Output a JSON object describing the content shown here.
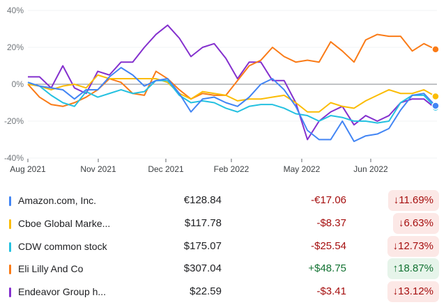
{
  "chart_data": {
    "type": "line",
    "ylabel": "",
    "ylim": [
      -40,
      40
    ],
    "yticks": [
      "40%",
      "20%",
      "0%",
      "-20%",
      "-40%"
    ],
    "ytick_values": [
      40,
      20,
      0,
      -20,
      -40
    ],
    "xticks": [
      "Aug 2021",
      "Nov 2021",
      "Dec 2021",
      "Feb 2022",
      "May 2022",
      "Jun 2022"
    ],
    "grid": true,
    "baseline": 0,
    "series": [
      {
        "name": "Endeavor Group h...",
        "color": "#8430ce",
        "values": [
          4,
          4,
          -2,
          10,
          -2,
          -5,
          7,
          5,
          12,
          12,
          20,
          27,
          32,
          25,
          15,
          20,
          22,
          14,
          3,
          12,
          12,
          2,
          2,
          -10,
          -30,
          -20,
          -15,
          -12,
          -22,
          -17,
          -20,
          -17,
          -10,
          -8,
          -8,
          -13.1
        ]
      },
      {
        "name": "Eli Lilly And Co",
        "color": "#fa7b17",
        "values": [
          0,
          -7,
          -11,
          -12,
          -10,
          -7,
          -3,
          3,
          1,
          -5,
          -6,
          7,
          3,
          -3,
          -8,
          -5,
          -6,
          -6,
          2,
          10,
          13,
          20,
          15,
          12,
          13,
          12,
          23,
          18,
          12,
          24,
          27,
          26,
          26,
          18,
          22,
          18.9
        ]
      },
      {
        "name": "Cboe Global Marke...",
        "color": "#fbbc04",
        "values": [
          0,
          -1,
          -3,
          -1,
          0,
          -2,
          5,
          3,
          3,
          3,
          3,
          3,
          1,
          -5,
          -8,
          -4,
          -5,
          -6,
          -9,
          -8,
          -8,
          -7,
          -6,
          -10,
          -15,
          -15,
          -10,
          -12,
          -13,
          -9,
          -6,
          -3,
          -5,
          -5,
          -3,
          -6.6
        ]
      },
      {
        "name": "CDW common stock",
        "color": "#24c1e0",
        "values": [
          1,
          -1,
          -6,
          -10,
          -12,
          -4,
          -7,
          -5,
          -3,
          -5,
          -4,
          2,
          2,
          -6,
          -10,
          -9,
          -10,
          -13,
          -15,
          -12,
          -11,
          -11,
          -13,
          -16,
          -17,
          -20,
          -17,
          -18,
          -20,
          -20,
          -21,
          -20,
          -10,
          -6,
          -6,
          -12.7
        ]
      },
      {
        "name": "Amazon.com, Inc.",
        "color": "#4285f4",
        "values": [
          1,
          -1,
          -2,
          -3,
          -8,
          -3,
          -3,
          4,
          9,
          5,
          -1,
          2,
          3,
          -5,
          -15,
          -8,
          -7,
          -10,
          -12,
          -7,
          0,
          3,
          -3,
          -12,
          -25,
          -30,
          -30,
          -20,
          -31,
          -28,
          -27,
          -24,
          -14,
          -6,
          -5,
          -11.7
        ]
      }
    ]
  },
  "table": [
    {
      "name": "Amazon.com, Inc.",
      "color": "#4285f4",
      "price": "€128.84",
      "change": "-€17.06",
      "percent": "11.69%",
      "direction": "down",
      "arrow": "↓"
    },
    {
      "name": "Cboe Global Marke...",
      "color": "#fbbc04",
      "price": "$117.78",
      "change": "-$8.37",
      "percent": "6.63%",
      "direction": "down",
      "arrow": "↓"
    },
    {
      "name": "CDW common stock",
      "color": "#24c1e0",
      "price": "$175.07",
      "change": "-$25.54",
      "percent": "12.73%",
      "direction": "down",
      "arrow": "↓"
    },
    {
      "name": "Eli Lilly And Co",
      "color": "#fa7b17",
      "price": "$307.04",
      "change": "+$48.75",
      "percent": "18.87%",
      "direction": "up",
      "arrow": "↑"
    },
    {
      "name": "Endeavor Group h...",
      "color": "#8430ce",
      "price": "$22.59",
      "change": "-$3.41",
      "percent": "13.12%",
      "direction": "down",
      "arrow": "↓"
    }
  ]
}
